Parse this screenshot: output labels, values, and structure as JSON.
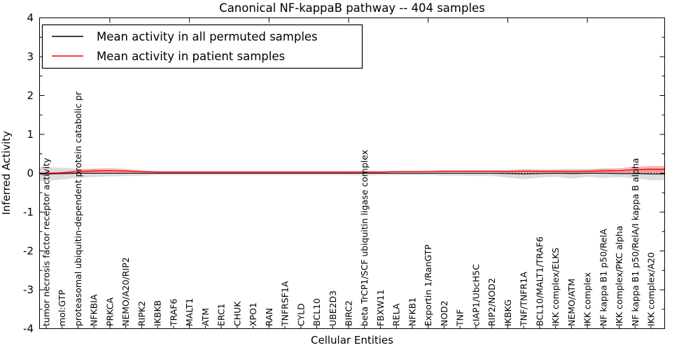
{
  "figure": {
    "title": "Canonical NF-kappaB pathway -- 404 samples",
    "xlabel": "Cellular Entities",
    "ylabel": "Inferred Activity"
  },
  "chart_data": {
    "type": "line",
    "title": "Canonical NF-kappaB pathway -- 404 samples",
    "xlabel": "Cellular Entities",
    "ylabel": "Inferred Activity",
    "ylim": [
      -4,
      4
    ],
    "ytick_step": 1,
    "ytick_minor_step": 0.5,
    "grid": false,
    "legend_position": "upper left",
    "zero_line": {
      "value": 0,
      "style": "dotted",
      "color": "#000000"
    },
    "x_major_tick_start_index": 4,
    "x_major_tick_every": 5,
    "categories": [
      "tumor necrosis factor receptor activity",
      "mol:GTP",
      "proteasomal ubiquitin-dependent protein catabolic pr",
      "NFKBIA",
      "PRKCA",
      "NEMO/A20/RIP2",
      "RIPK2",
      "IKBKB",
      "TRAF6",
      "MALT1",
      "ATM",
      "ERC1",
      "CHUK",
      "XPO1",
      "RAN",
      "TNFRSF1A",
      "CYLD",
      "BCL10",
      "UBE2D3",
      "BIRC2",
      "beta TrCP1/SCF ubiquitin ligase complex",
      "FBXW11",
      "RELA",
      "NFKB1",
      "Exportin 1/RanGTP",
      "NOD2",
      "TNF",
      "cIAP1/UbcH5C",
      "RIP2/NOD2",
      "IKBKG",
      "TNF/TNFR1A",
      "BCL10/MALT1/TRAF6",
      "IKK complex/ELKS",
      "NEMO/ATM",
      "IKK complex",
      "NF kappa B1 p50/RelA",
      "IKK complex/PKC alpha",
      "NF kappa B1 p50/RelA/I kappa B alpha",
      "IKK complex/A20"
    ],
    "series": [
      {
        "name": "Mean activity in all permuted samples",
        "color": "#000000",
        "band_color": "rgba(130,130,130,0.28)",
        "values": [
          -0.02,
          -0.01,
          0,
          0,
          0,
          0,
          0,
          0,
          0,
          0,
          0,
          0,
          0,
          0,
          0,
          0,
          0,
          0,
          0,
          0,
          0,
          0,
          0,
          0,
          0,
          0,
          0,
          0,
          0,
          -0.01,
          -0.02,
          -0.01,
          0,
          -0.01,
          0,
          0,
          -0.01,
          -0.01,
          -0.02
        ],
        "band_half_width": [
          0.18,
          0.15,
          0.12,
          0.1,
          0.08,
          0.07,
          0.06,
          0.05,
          0.05,
          0.05,
          0.05,
          0.05,
          0.05,
          0.05,
          0.05,
          0.05,
          0.05,
          0.05,
          0.05,
          0.05,
          0.06,
          0.05,
          0.05,
          0.05,
          0.05,
          0.06,
          0.06,
          0.07,
          0.07,
          0.1,
          0.13,
          0.1,
          0.09,
          0.13,
          0.09,
          0.12,
          0.09,
          0.12,
          0.16
        ]
      },
      {
        "name": "Mean activity in patient samples",
        "color": "#ff0000",
        "band_color": "rgba(255,50,50,0.35)",
        "values": [
          0.0,
          0.01,
          0.04,
          0.06,
          0.07,
          0.06,
          0.04,
          0.03,
          0.03,
          0.03,
          0.03,
          0.03,
          0.03,
          0.03,
          0.03,
          0.03,
          0.03,
          0.03,
          0.03,
          0.03,
          0.03,
          0.03,
          0.04,
          0.04,
          0.04,
          0.05,
          0.05,
          0.05,
          0.05,
          0.04,
          0.05,
          0.05,
          0.05,
          0.04,
          0.05,
          0.06,
          0.07,
          0.09,
          0.1
        ],
        "band_half_width": [
          0.02,
          0.03,
          0.05,
          0.06,
          0.06,
          0.05,
          0.03,
          0.02,
          0.02,
          0.02,
          0.02,
          0.02,
          0.02,
          0.02,
          0.02,
          0.02,
          0.02,
          0.02,
          0.02,
          0.02,
          0.02,
          0.02,
          0.02,
          0.02,
          0.02,
          0.03,
          0.03,
          0.03,
          0.03,
          0.03,
          0.04,
          0.04,
          0.04,
          0.04,
          0.05,
          0.06,
          0.06,
          0.08,
          0.09
        ]
      }
    ]
  }
}
